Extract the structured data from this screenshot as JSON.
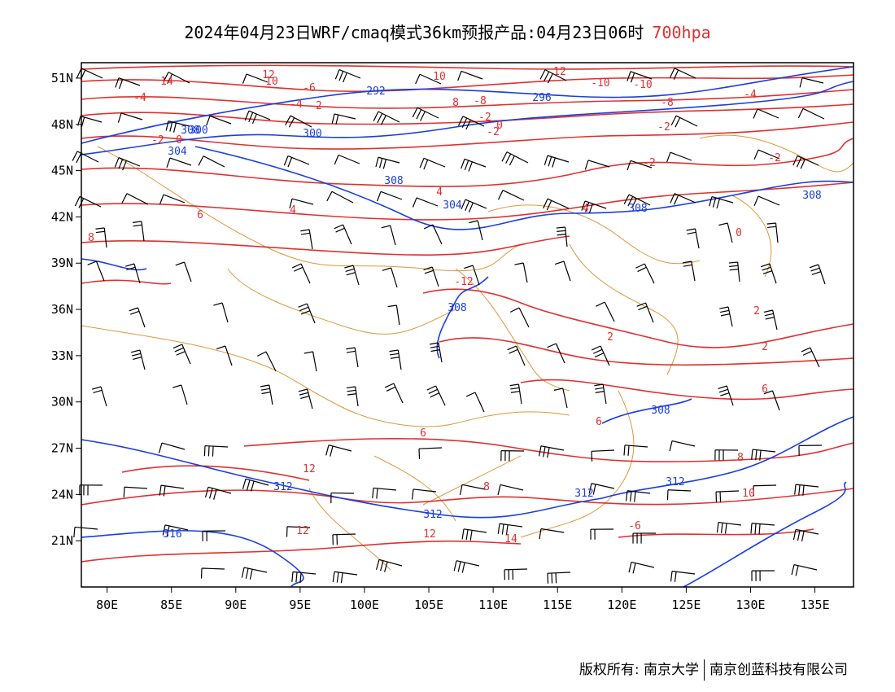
{
  "title": {
    "main": "2024年04月23日WRF/cmaq模式36km预报产品:04月23日06时",
    "level": "700hpa"
  },
  "map": {
    "lon_range": [
      78,
      138
    ],
    "lat_range": [
      18,
      52
    ],
    "x_ticks": [
      "80E",
      "85E",
      "90E",
      "95E",
      "100E",
      "105E",
      "110E",
      "115E",
      "120E",
      "125E",
      "130E",
      "135E"
    ],
    "y_ticks": [
      "51N",
      "48N",
      "45N",
      "42N",
      "39N",
      "36N",
      "33N",
      "30N",
      "27N",
      "24N",
      "21N"
    ],
    "colors": {
      "temperature": "#e03030",
      "height": "#1a3ee0",
      "border": "#e0963c",
      "barb": "#000000"
    },
    "temperature_labels": [
      "14",
      "12",
      "10",
      "12",
      "10",
      "8",
      "-10",
      "-10",
      "-8",
      "-8",
      "-6",
      "-4",
      "-4",
      "-4",
      "-2",
      "-2",
      "-2",
      "-2",
      "-2",
      "-2",
      "-2",
      "0",
      "0",
      "0",
      "2",
      "2",
      "2",
      "4",
      "4",
      "4",
      "6",
      "6",
      "6",
      "6",
      "8",
      "8",
      "8",
      "10",
      "12",
      "12",
      "12",
      "14",
      "-6",
      "-12"
    ],
    "height_labels": [
      "292",
      "296",
      "300",
      "300",
      "304",
      "304",
      "308",
      "308",
      "308",
      "308",
      "308",
      "308",
      "312",
      "312",
      "312",
      "312",
      "316"
    ]
  },
  "footer": {
    "left": "版权所有: 南京大学",
    "right": "南京创蓝科技有限公司"
  }
}
